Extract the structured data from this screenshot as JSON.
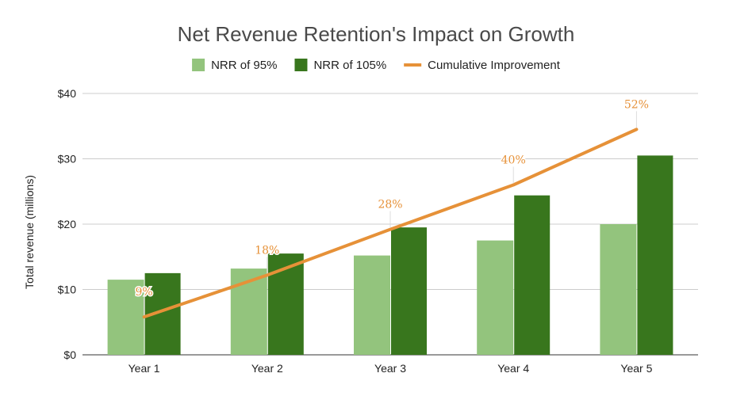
{
  "chart_data": {
    "type": "bar",
    "title": "Net Revenue Retention's Impact on Growth",
    "xlabel": "",
    "ylabel": "Total revenue (millions)",
    "ylim": [
      0,
      40
    ],
    "yticks": [
      {
        "value": 0,
        "label": "$0"
      },
      {
        "value": 10,
        "label": "$10"
      },
      {
        "value": 20,
        "label": "$20"
      },
      {
        "value": 30,
        "label": "$30"
      },
      {
        "value": 40,
        "label": "$40"
      }
    ],
    "grid": true,
    "legend_position": "top",
    "categories": [
      "Year 1",
      "Year 2",
      "Year 3",
      "Year 4",
      "Year 5"
    ],
    "series": [
      {
        "name": "NRR of 95%",
        "type": "bar",
        "color": "#93c47d",
        "values": [
          11.5,
          13.2,
          15.2,
          17.5,
          20.0
        ]
      },
      {
        "name": "NRR of 105%",
        "type": "bar",
        "color": "#38761d",
        "values": [
          12.5,
          15.5,
          19.5,
          24.4,
          30.5
        ]
      },
      {
        "name": "Cumulative Improvement",
        "type": "line",
        "color": "#e69138",
        "values": [
          5.8,
          12.2,
          19.2,
          26.0,
          34.5
        ],
        "labels": [
          "9%",
          "18%",
          "28%",
          "40%",
          "52%"
        ]
      }
    ]
  }
}
